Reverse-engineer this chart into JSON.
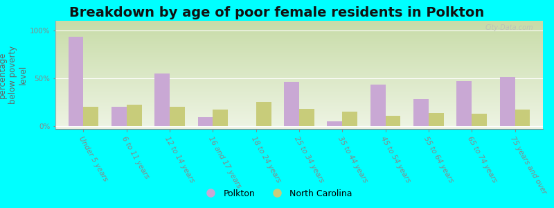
{
  "title": "Breakdown by age of poor female residents in Polkton",
  "ylabel": "percentage\nbelow poverty\nlevel",
  "background_color": "#00ffff",
  "categories": [
    "Under 5 years",
    "6 to 11 years",
    "12 to 14 years",
    "16 and 17 years",
    "18 to 24 years",
    "25 to 34 years",
    "35 to 44 years",
    "45 to 54 years",
    "55 to 64 years",
    "65 to 74 years",
    "75 years and over"
  ],
  "polkton_values": [
    93,
    20,
    55,
    9,
    0,
    46,
    5,
    43,
    28,
    47,
    51
  ],
  "nc_values": [
    20,
    22,
    20,
    17,
    25,
    18,
    15,
    11,
    14,
    13,
    17
  ],
  "polkton_color": "#c9a8d4",
  "nc_color": "#c8cc7a",
  "polkton_label": "Polkton",
  "nc_label": "North Carolina",
  "yticks": [
    0,
    50,
    100
  ],
  "ytick_labels": [
    "0%",
    "50%",
    "100%"
  ],
  "ylim": [
    -3,
    110
  ],
  "bar_width": 0.35,
  "title_fontsize": 14,
  "axis_label_fontsize": 8.5,
  "tick_fontsize": 7.5,
  "legend_fontsize": 9,
  "watermark": "City-Data.com"
}
